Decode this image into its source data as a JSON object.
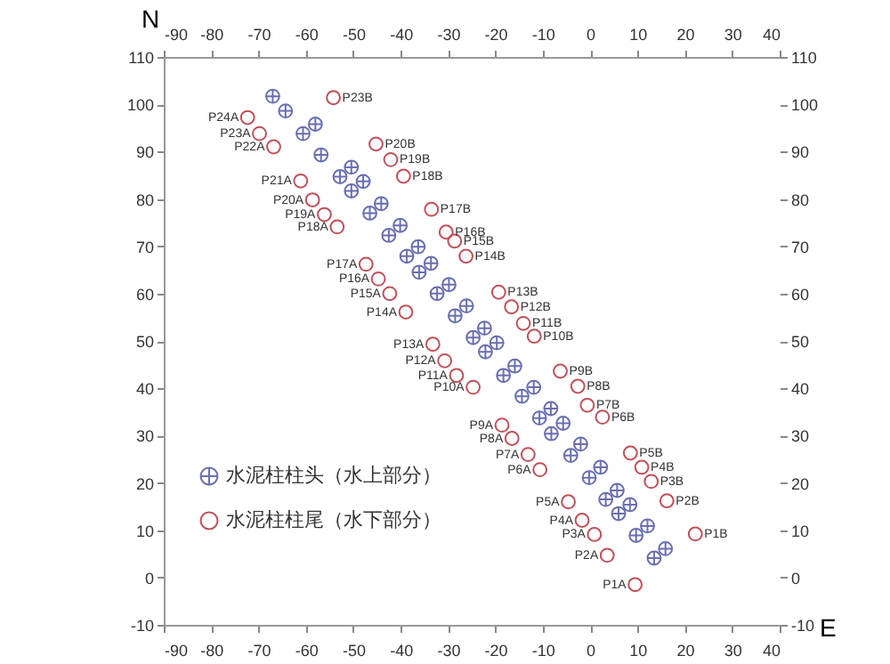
{
  "chart_data": {
    "type": "scatter",
    "xlabel": "E",
    "ylabel": "N",
    "xlim": [
      -90,
      40
    ],
    "xticks": [
      -90,
      -80,
      -70,
      -60,
      -50,
      -40,
      -30,
      -20,
      -10,
      0,
      10,
      20,
      30,
      40
    ],
    "x2lim": [
      -90,
      40
    ],
    "x2ticks": [
      -90,
      -80,
      -70,
      -60,
      -50,
      -40,
      -30,
      -20,
      -10,
      0,
      10,
      20,
      30,
      40
    ],
    "ylim": [
      -10,
      110
    ],
    "yticks": [
      -10,
      0,
      10,
      20,
      30,
      40,
      50,
      60,
      70,
      80,
      90,
      100,
      110
    ],
    "y2lim": [
      -10,
      110
    ],
    "y2ticks": [
      -10,
      0,
      10,
      20,
      30,
      40,
      50,
      60,
      70,
      80,
      90,
      100,
      110
    ],
    "grid": false,
    "legend": "bottom left",
    "series": [
      {
        "name": "水泥柱柱头（水上部分）",
        "color": "#6a6fb0",
        "marker": "cross",
        "x": [
          -67,
          -64.3,
          -58,
          -60.6,
          -56.8,
          -50.4,
          -52.8,
          -47.9,
          -50.4,
          -44.1,
          -46.5,
          -40.1,
          -42.5,
          -36.3,
          -38.7,
          -33.6,
          -36.1,
          -29.8,
          -32.3,
          -26.1,
          -28.5,
          -22.3,
          -24.7,
          -19.7,
          -22.1,
          -15.9,
          -18.3,
          -11.9,
          -14.4,
          -8.3,
          -10.7,
          -5.7,
          -8.2,
          -2,
          -4.1,
          2.2,
          -0.2,
          5.7,
          3.3,
          8.4,
          6,
          12.1,
          9.7,
          15.9,
          13.5
        ],
        "values": [
          101.7,
          98.6,
          95.8,
          93.8,
          89.3,
          86.7,
          84.7,
          83.7,
          81.7,
          79,
          77,
          74.4,
          72.3,
          69.9,
          67.9,
          66.4,
          64.5,
          61.9,
          60,
          57.4,
          55.3,
          52.7,
          50.7,
          49.6,
          47.7,
          44.7,
          42.7,
          40.2,
          38.3,
          35.7,
          33.7,
          32.6,
          30.4,
          28.2,
          25.8,
          23.3,
          21.1,
          18.4,
          16.5,
          15.4,
          13.5,
          10.9,
          8.9,
          6.1,
          4.1
        ]
      },
      {
        "name": "水泥柱柱尾（水下部分）",
        "color": "#c0505a",
        "marker": "circle",
        "x": [
          -72.3,
          -69.8,
          -66.8,
          -61.1,
          -58.6,
          -56.1,
          -53.4,
          -47.3,
          -44.7,
          -42.3,
          -38.9,
          -33.2,
          -30.7,
          -28.2,
          -24.7,
          -18.6,
          -16.5,
          -13.1,
          -10.6,
          -4.6,
          -1.7,
          0.9,
          3.6,
          9.5,
          -54.2,
          -45.2,
          -42.1,
          -39.4,
          -33.5,
          -30.4,
          -28.6,
          -26.2,
          -19.3,
          -16.6,
          -14.1,
          -11.8,
          -6.3,
          -2.6,
          -0.6,
          2.6,
          8.5,
          10.9,
          12.9,
          16.2,
          22.2
        ],
        "values": [
          97.2,
          93.8,
          91,
          83.8,
          79.8,
          76.7,
          74.1,
          66.2,
          63.1,
          60,
          56.1,
          49.3,
          45.8,
          42.7,
          40.2,
          32.2,
          29.4,
          26,
          22.8,
          16,
          12.1,
          9.1,
          4.7,
          -1.5,
          101.4,
          91.6,
          88.3,
          84.8,
          77.8,
          73,
          71.1,
          67.9,
          60.3,
          57.2,
          53.7,
          51,
          43.6,
          40.4,
          36.4,
          33.9,
          26.3,
          23.3,
          20.3,
          16.2,
          9.2
        ]
      }
    ],
    "annotations": [
      {
        "text": "P24A",
        "x": -72.3,
        "y": 97.2
      },
      {
        "text": "P23A",
        "x": -69.8,
        "y": 93.8
      },
      {
        "text": "P22A",
        "x": -66.8,
        "y": 91
      },
      {
        "text": "P21A",
        "x": -61.1,
        "y": 83.8
      },
      {
        "text": "P20A",
        "x": -58.6,
        "y": 79.8
      },
      {
        "text": "P19A",
        "x": -56.1,
        "y": 76.7
      },
      {
        "text": "P18A",
        "x": -53.4,
        "y": 74.1
      },
      {
        "text": "P17A",
        "x": -47.3,
        "y": 66.2
      },
      {
        "text": "P16A",
        "x": -44.7,
        "y": 63.1
      },
      {
        "text": "P15A",
        "x": -42.3,
        "y": 60
      },
      {
        "text": "P14A",
        "x": -38.9,
        "y": 56.1
      },
      {
        "text": "P13A",
        "x": -33.2,
        "y": 49.3
      },
      {
        "text": "P12A",
        "x": -30.7,
        "y": 45.8
      },
      {
        "text": "P11A",
        "x": -28.2,
        "y": 42.7
      },
      {
        "text": "P10A",
        "x": -24.7,
        "y": 40.2
      },
      {
        "text": "P9A",
        "x": -18.6,
        "y": 32.2
      },
      {
        "text": "P8A",
        "x": -16.5,
        "y": 29.4
      },
      {
        "text": "P7A",
        "x": -13.1,
        "y": 26
      },
      {
        "text": "P6A",
        "x": -10.6,
        "y": 22.8
      },
      {
        "text": "P5A",
        "x": -4.6,
        "y": 16
      },
      {
        "text": "P4A",
        "x": -1.7,
        "y": 12.1
      },
      {
        "text": "P3A",
        "x": 0.9,
        "y": 9.1
      },
      {
        "text": "P2A",
        "x": 3.6,
        "y": 4.7
      },
      {
        "text": "P1A",
        "x": 9.5,
        "y": -1.5
      },
      {
        "text": "P23B",
        "x": -54.2,
        "y": 101.4
      },
      {
        "text": "P20B",
        "x": -45.2,
        "y": 91.6
      },
      {
        "text": "P19B",
        "x": -42.1,
        "y": 88.3
      },
      {
        "text": "P18B",
        "x": -39.4,
        "y": 84.8
      },
      {
        "text": "P17B",
        "x": -33.5,
        "y": 77.8
      },
      {
        "text": "P16B",
        "x": -30.4,
        "y": 73
      },
      {
        "text": "P15B",
        "x": -28.6,
        "y": 71.1
      },
      {
        "text": "P14B",
        "x": -26.2,
        "y": 67.9
      },
      {
        "text": "P13B",
        "x": -19.3,
        "y": 60.3
      },
      {
        "text": "P12B",
        "x": -16.6,
        "y": 57.2
      },
      {
        "text": "P11B",
        "x": -14.1,
        "y": 53.7
      },
      {
        "text": "P10B",
        "x": -11.8,
        "y": 51
      },
      {
        "text": "P9B",
        "x": -6.3,
        "y": 43.6
      },
      {
        "text": "P8B",
        "x": -2.6,
        "y": 40.4
      },
      {
        "text": "P7B",
        "x": -0.6,
        "y": 36.4
      },
      {
        "text": "P6B",
        "x": 2.6,
        "y": 33.9
      },
      {
        "text": "P5B",
        "x": 8.5,
        "y": 26.3
      },
      {
        "text": "P4B",
        "x": 10.9,
        "y": 23.3
      },
      {
        "text": "P3B",
        "x": 12.9,
        "y": 20.3
      },
      {
        "text": "P2B",
        "x": 16.2,
        "y": 16.2
      },
      {
        "text": "P1B",
        "x": 22.2,
        "y": 9.2
      }
    ]
  }
}
